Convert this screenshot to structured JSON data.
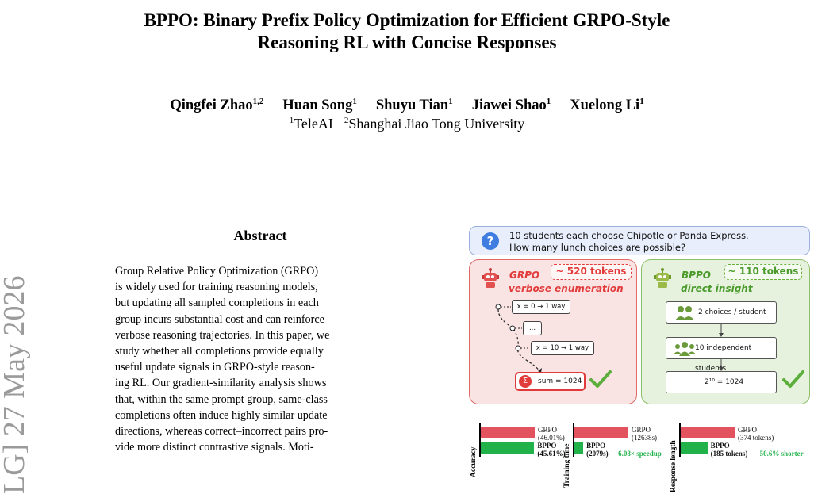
{
  "paper": {
    "title_line1": "BPPO: Binary Prefix Policy Optimization for Efficient GRPO-Style",
    "title_line2": "Reasoning RL with Concise Responses",
    "authors": [
      {
        "name": "Qingfei Zhao",
        "sup": "1,2"
      },
      {
        "name": "Huan Song",
        "sup": "1"
      },
      {
        "name": "Shuyu Tian",
        "sup": "1"
      },
      {
        "name": "Jiawei Shao",
        "sup": "1"
      },
      {
        "name": "Xuelong Li",
        "sup": "1"
      }
    ],
    "affiliations": [
      {
        "sup": "1",
        "name": "TeleAI"
      },
      {
        "sup": "2",
        "name": "Shanghai Jiao Tong University"
      }
    ],
    "arxiv_stamp": "LG]  27 May 2026",
    "abstract_heading": "Abstract",
    "abstract_lines": [
      "Group Relative Policy Optimization (GRPO)",
      "is widely used for training reasoning models,",
      "but updating all sampled completions in each",
      "group incurs substantial cost and can reinforce",
      "verbose reasoning trajectories. In this paper, we",
      "study whether all completions provide equally",
      "useful update signals in GRPO-style reason-",
      "ing RL. Our gradient-similarity analysis shows",
      "that, within the same prompt group, same-class",
      "completions often induce highly similar update",
      "directions, whereas correct–incorrect pairs pro-",
      "vide more distinct contrastive signals. Moti-"
    ]
  },
  "figure": {
    "question_line1": "10 students each choose Chipotle or Panda Express.",
    "question_line2": "How many lunch choices are possible?",
    "question_icon": "?",
    "grpo": {
      "name": "GRPO",
      "subtitle": "verbose enumeration",
      "tokens": "~ 520 tokens",
      "steps": [
        "x = 0 → 1 way",
        "...",
        "x = 10 → 1 way"
      ],
      "sum": "sum = 1024",
      "sum_icon": "Σ"
    },
    "bppo": {
      "name": "BPPO",
      "subtitle": "direct insight",
      "tokens": "~ 110 tokens",
      "step1": "2 choices / student",
      "step2": "10 independent students",
      "result": "2¹⁰ = 1024"
    },
    "colors": {
      "grpo": "#e2535f",
      "bppo": "#22b24c"
    }
  },
  "chart_data": [
    {
      "type": "bar",
      "ylabel": "Accuracy",
      "series": [
        {
          "name": "GRPO",
          "label": "(46.01%)",
          "value": 46.01
        },
        {
          "name": "BPPO",
          "label": "(45.61%)",
          "value": 45.61
        }
      ],
      "annotation": ""
    },
    {
      "type": "bar",
      "ylabel": "Training time",
      "series": [
        {
          "name": "GRPO",
          "label": "(12638s)",
          "value": 12638
        },
        {
          "name": "BPPO",
          "label": "(2079s)",
          "value": 2079
        }
      ],
      "annotation": "6.08× speedup"
    },
    {
      "type": "bar",
      "ylabel": "Response length",
      "series": [
        {
          "name": "GRPO",
          "label": "(374 tokens)",
          "value": 374
        },
        {
          "name": "BPPO",
          "label": "(185 tokens)",
          "value": 185
        }
      ],
      "annotation": "50.6% shorter"
    }
  ]
}
